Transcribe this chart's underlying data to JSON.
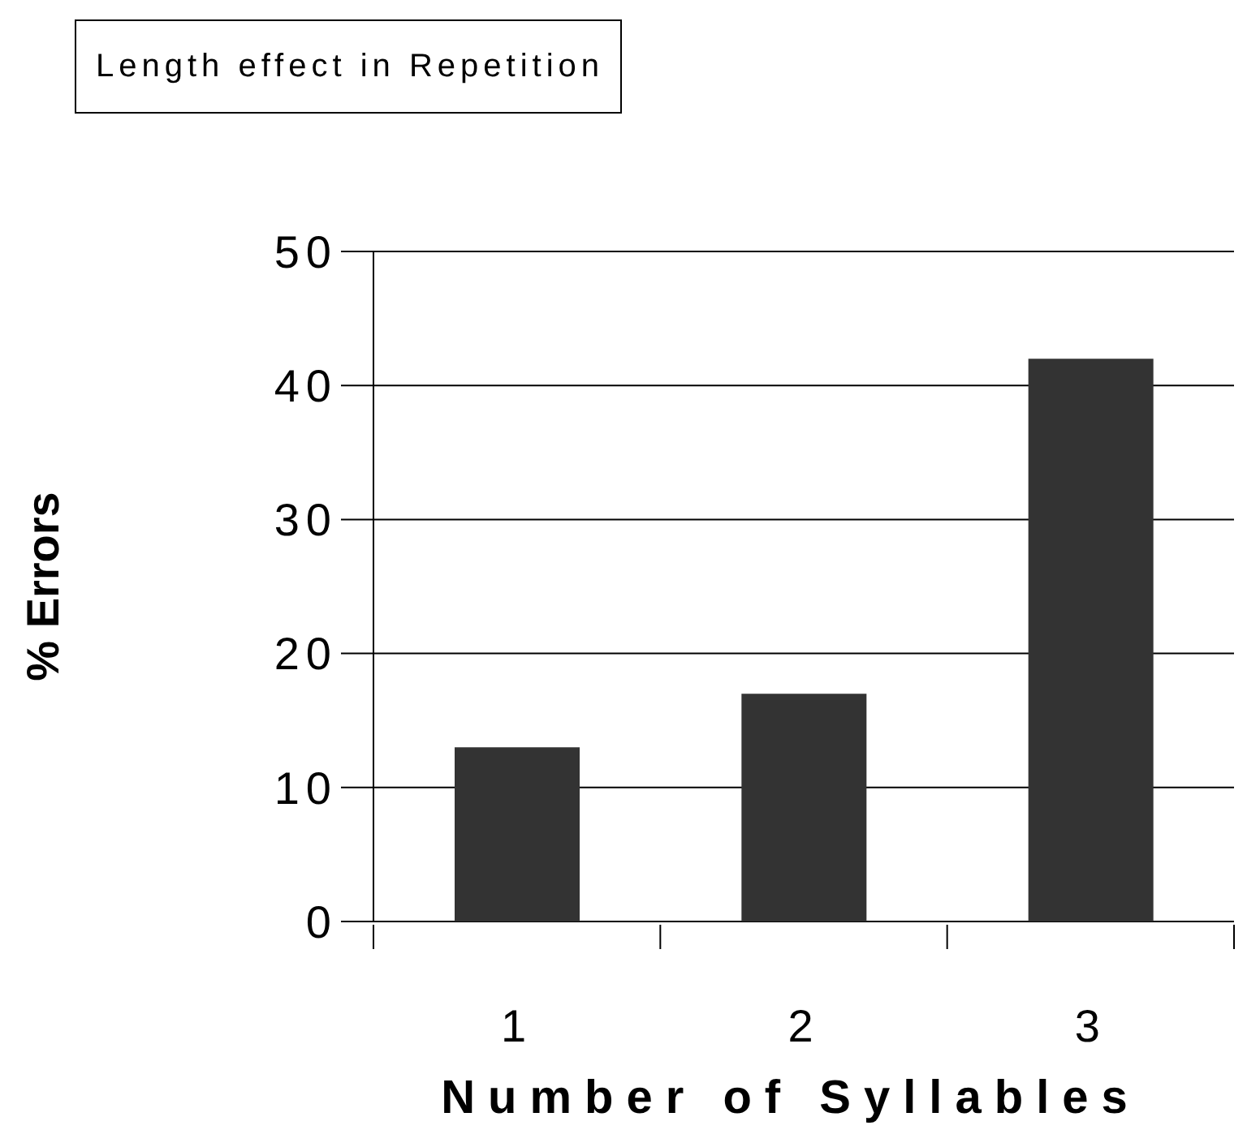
{
  "chart_data": {
    "type": "bar",
    "title": "Length effect in Repetition",
    "xlabel": "Number of Syllables",
    "ylabel": "% Errors",
    "categories": [
      "1",
      "2",
      "3"
    ],
    "values": [
      13,
      17,
      42
    ],
    "color": "#333333",
    "ylim": [
      0,
      50
    ],
    "yticks": [
      0,
      10,
      20,
      30,
      40,
      50
    ],
    "grid": "y",
    "legend": false
  }
}
